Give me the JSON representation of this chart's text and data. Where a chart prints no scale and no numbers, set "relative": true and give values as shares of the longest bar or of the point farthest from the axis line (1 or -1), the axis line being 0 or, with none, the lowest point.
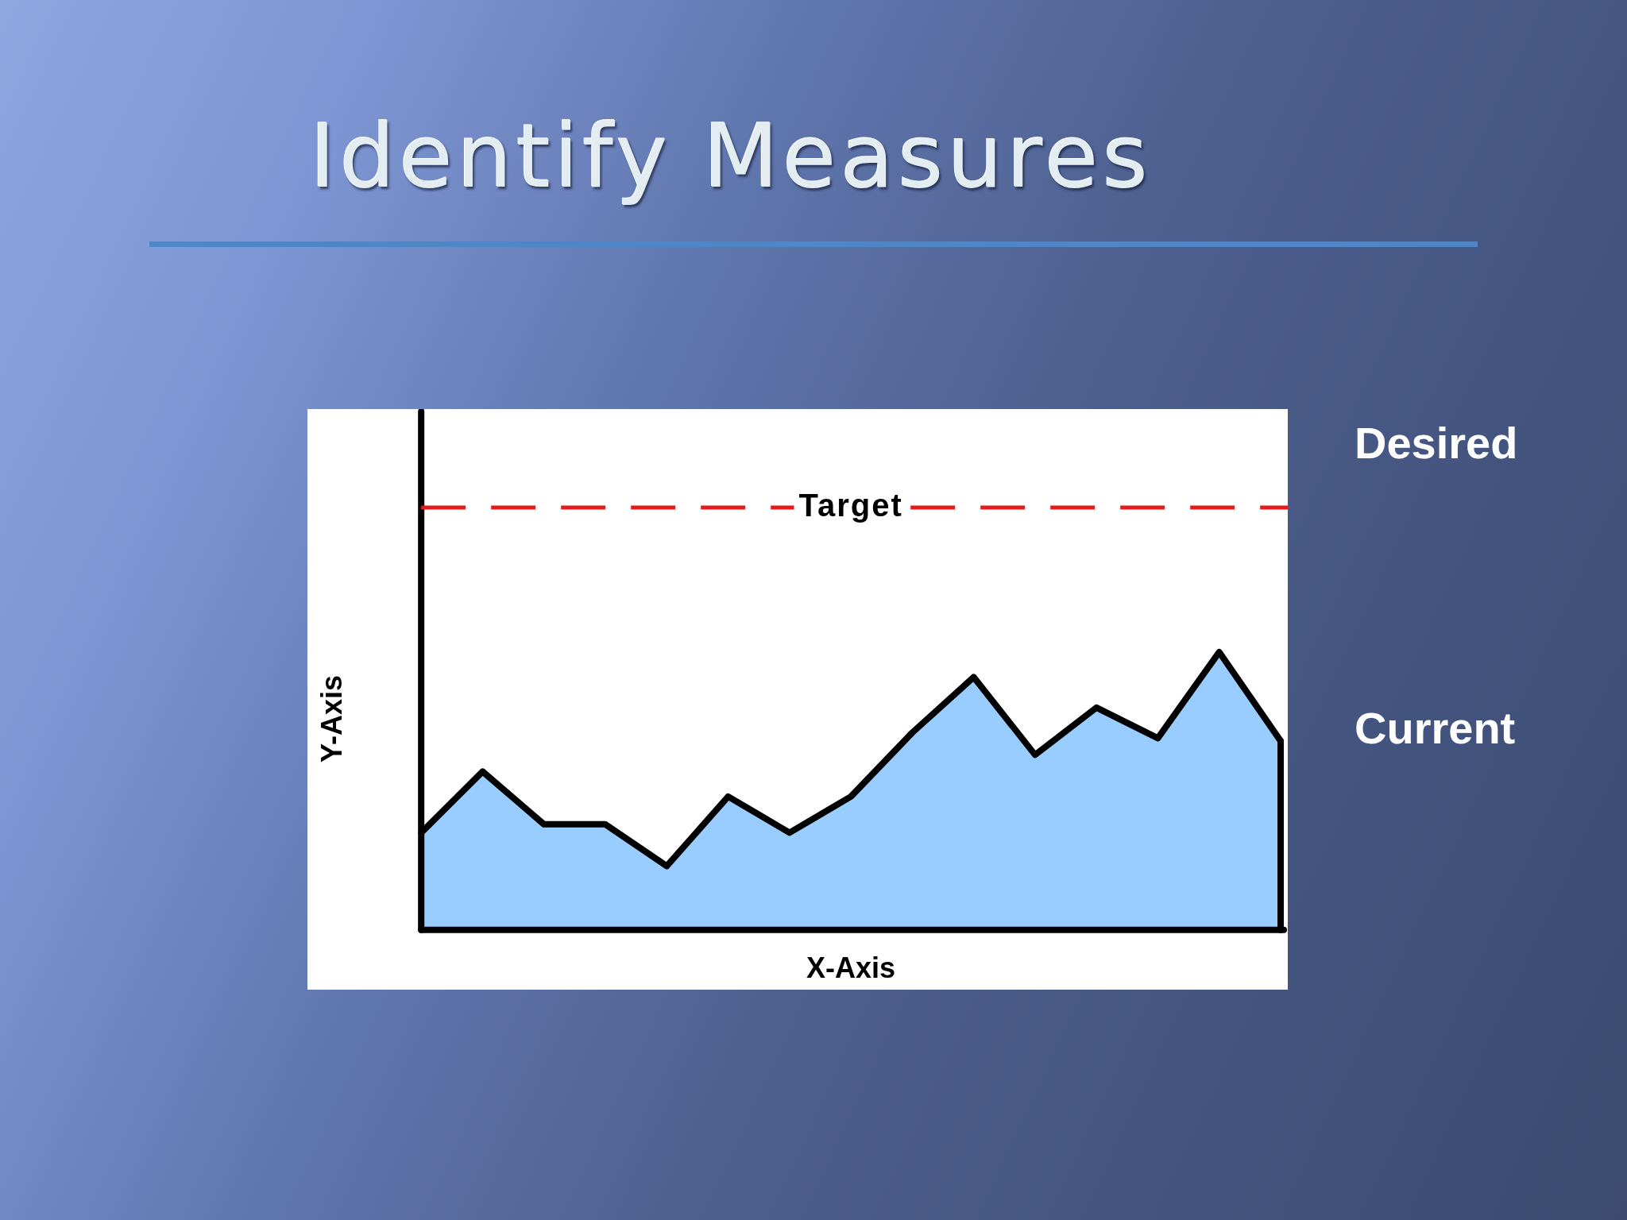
{
  "chart_data": {
    "type": "area",
    "title": "Identify Measures",
    "xlabel": "X-Axis",
    "ylabel": "Y-Axis",
    "categories": [
      null,
      null,
      null,
      null,
      null,
      null,
      null,
      null,
      null,
      null,
      null,
      null,
      null,
      null,
      null
    ],
    "values": [
      0.35,
      0.57,
      0.38,
      0.38,
      0.23,
      0.48,
      0.35,
      0.48,
      0.71,
      0.91,
      0.63,
      0.8,
      0.69,
      1,
      0.68
    ],
    "color": "#99ccff",
    "relative": true,
    "ref_lines": [
      {
        "axis": "y",
        "value": 1.52,
        "label": "Target",
        "color": "#e51a1f",
        "line_style": "dashed"
      }
    ],
    "annotations": [
      "Desired",
      "Current"
    ]
  }
}
